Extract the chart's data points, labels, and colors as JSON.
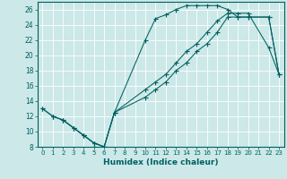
{
  "xlabel": "Humidex (Indice chaleur)",
  "bg_color": "#cce8e8",
  "grid_color": "#ffffff",
  "line_color": "#006060",
  "xlim": [
    -0.5,
    23.5
  ],
  "ylim": [
    8,
    27
  ],
  "xtick_vals": [
    0,
    1,
    2,
    3,
    4,
    5,
    6,
    7,
    8,
    9,
    10,
    11,
    12,
    13,
    14,
    15,
    16,
    17,
    18,
    19,
    20,
    21,
    22,
    23
  ],
  "ytick_vals": [
    8,
    10,
    12,
    14,
    16,
    18,
    20,
    22,
    24,
    26
  ],
  "line1_x": [
    0,
    1,
    2,
    3,
    4,
    5,
    6,
    7,
    10,
    11,
    12,
    13,
    14,
    15,
    16,
    17,
    18,
    19,
    20,
    22,
    23
  ],
  "line1_y": [
    13,
    12,
    11.5,
    10.5,
    9.5,
    8.5,
    8.0,
    12.5,
    22.0,
    24.8,
    25.3,
    26.0,
    26.5,
    26.5,
    26.5,
    26.5,
    26.0,
    25.0,
    25.0,
    25.0,
    17.5
  ],
  "line2_x": [
    0,
    1,
    2,
    3,
    4,
    5,
    6,
    7,
    10,
    11,
    12,
    13,
    14,
    15,
    16,
    17,
    18,
    19,
    20,
    22,
    23
  ],
  "line2_y": [
    13,
    12,
    11.5,
    10.5,
    9.5,
    8.5,
    8.0,
    12.5,
    14.5,
    15.5,
    16.5,
    18.0,
    19.0,
    20.5,
    21.5,
    23.0,
    25.0,
    25.0,
    25.0,
    25.0,
    17.5
  ],
  "line3_x": [
    1,
    2,
    3,
    4,
    5,
    6,
    7,
    10,
    11,
    12,
    13,
    14,
    15,
    16,
    17,
    18,
    19,
    20,
    22,
    23
  ],
  "line3_y": [
    12,
    11.5,
    10.5,
    9.5,
    8.5,
    8.0,
    12.5,
    15.5,
    16.5,
    17.5,
    19.0,
    20.5,
    21.5,
    23.0,
    24.5,
    25.5,
    25.5,
    25.5,
    21.0,
    17.5
  ]
}
